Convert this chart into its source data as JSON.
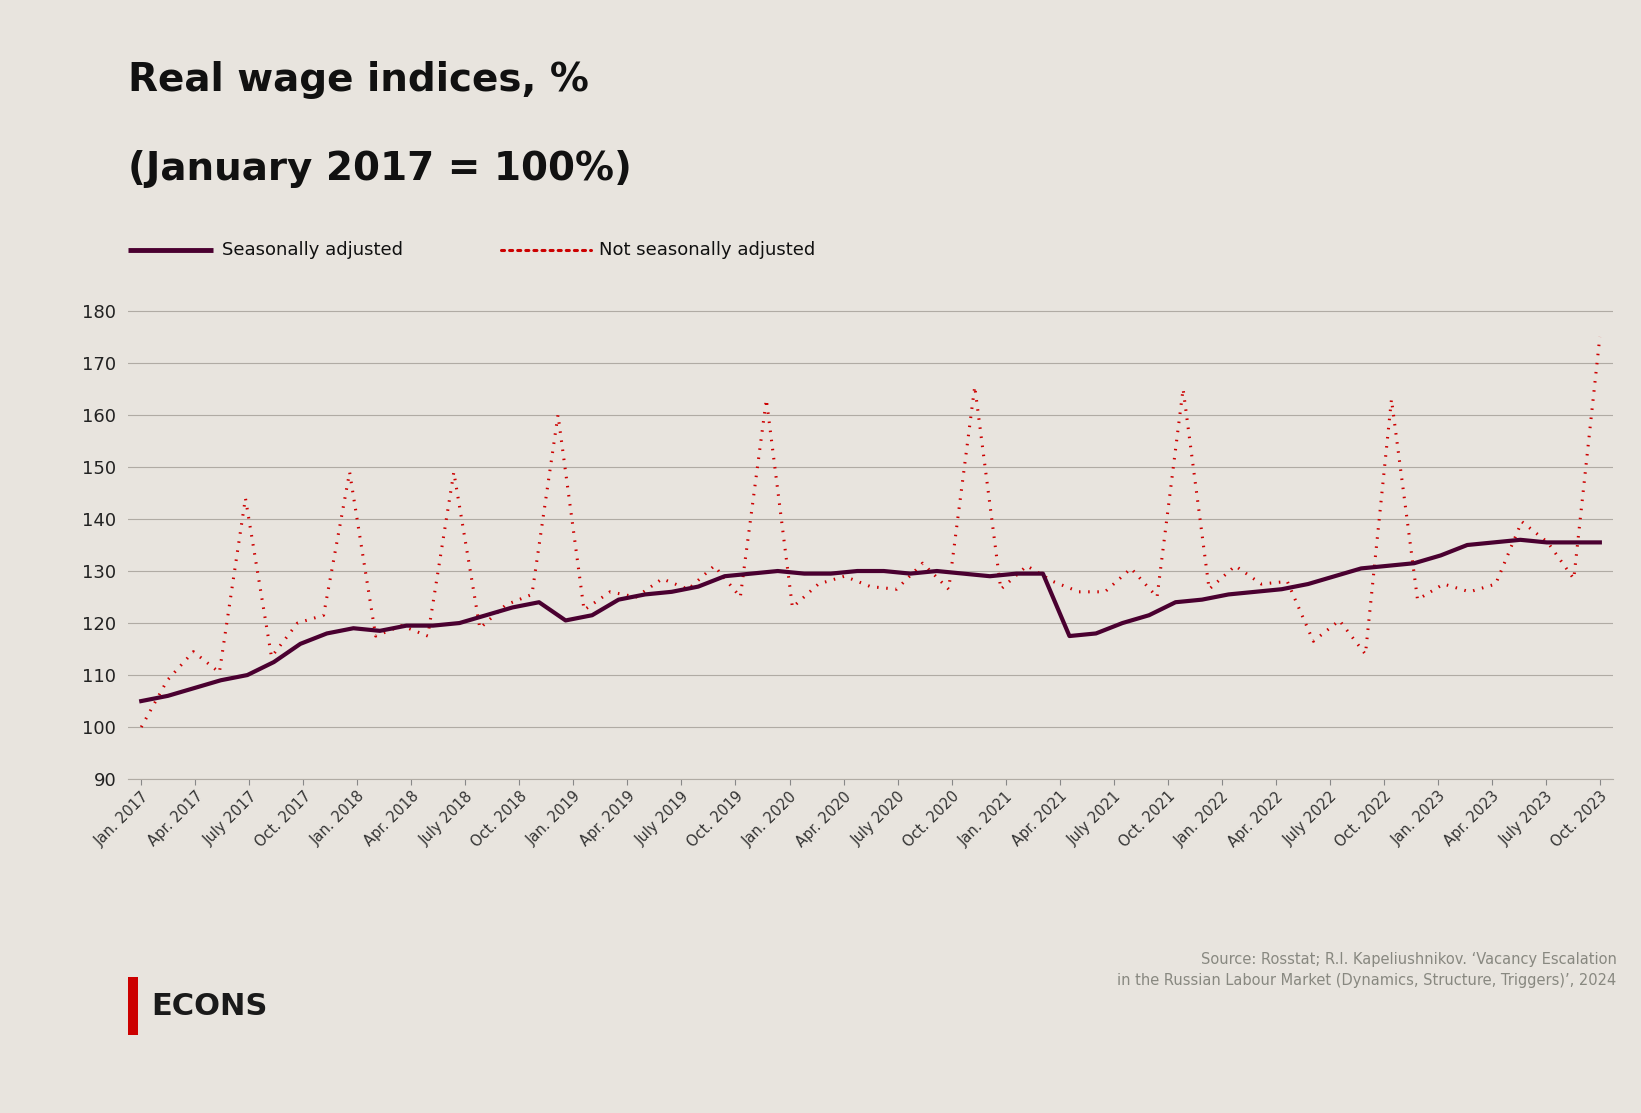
{
  "title_line1": "Real wage indices, %",
  "title_line2": "(January 2017 = 100%)",
  "background_color": "#e8e4de",
  "seasonally_adjusted_color": "#4a0030",
  "not_seasonally_adjusted_color": "#cc0000",
  "ylim": [
    90,
    182
  ],
  "yticks": [
    90,
    100,
    110,
    120,
    130,
    140,
    150,
    160,
    170,
    180
  ],
  "source_text": "Source: Rosstat; R.I. Kapeliushnikov. ‘Vacancy Escalation\nin the Russian Labour Market (Dynamics, Structure, Triggers)’, 2024",
  "legend_sa": "Seasonally adjusted",
  "legend_nsa": "Not seasonally adjusted",
  "xtick_labels": [
    "Jan. 2017",
    "Apr. 2017",
    "July 2017",
    "Oct. 2017",
    "Jan. 2018",
    "Apr. 2018",
    "July 2018",
    "Oct. 2018",
    "Jan. 2019",
    "Apr. 2019",
    "July 2019",
    "Oct. 2019",
    "Jan. 2020",
    "Apr. 2020",
    "July 2020",
    "Oct. 2020",
    "Jan. 2021",
    "Apr. 2021",
    "July 2021",
    "Oct. 2021",
    "Jan. 2022",
    "Apr. 2022",
    "July 2022",
    "Oct. 2022",
    "Jan. 2023",
    "Apr. 2023",
    "July 2023",
    "Oct. 2023"
  ],
  "seasonally_adjusted": [
    105.0,
    106.0,
    107.5,
    109.0,
    110.0,
    112.5,
    116.0,
    118.0,
    119.0,
    118.5,
    119.5,
    119.5,
    120.0,
    121.5,
    123.0,
    124.0,
    120.5,
    121.5,
    124.5,
    125.5,
    126.0,
    127.0,
    129.0,
    129.5,
    130.0,
    129.5,
    129.5,
    130.0,
    130.0,
    129.5,
    130.0,
    129.5,
    129.0,
    129.5,
    129.5,
    117.5,
    118.0,
    120.0,
    121.5,
    124.0,
    124.5,
    125.5,
    126.0,
    126.5,
    127.5,
    129.0,
    130.5,
    131.0,
    131.5,
    133.0,
    135.0,
    135.5,
    136.0,
    135.5,
    135.5,
    135.5
  ],
  "not_seasonally_adjusted": [
    100.0,
    109.0,
    114.5,
    110.5,
    144.0,
    113.5,
    120.0,
    121.5,
    149.0,
    117.5,
    119.5,
    117.5,
    149.0,
    119.0,
    123.5,
    125.5,
    160.0,
    122.5,
    126.0,
    125.0,
    128.5,
    126.5,
    131.0,
    125.0,
    163.0,
    123.0,
    127.5,
    129.0,
    127.0,
    126.5,
    131.5,
    126.5,
    165.5,
    126.5,
    131.0,
    128.0,
    126.0,
    126.0,
    130.5,
    125.0,
    165.0,
    126.5,
    131.0,
    127.5,
    128.0,
    116.5,
    120.5,
    114.0,
    163.0,
    124.5,
    127.5,
    126.0,
    127.5,
    139.5,
    135.5,
    128.5,
    175.0
  ],
  "econs_bar_color": "#cc0000",
  "econs_text_color": "#1a1a1a"
}
